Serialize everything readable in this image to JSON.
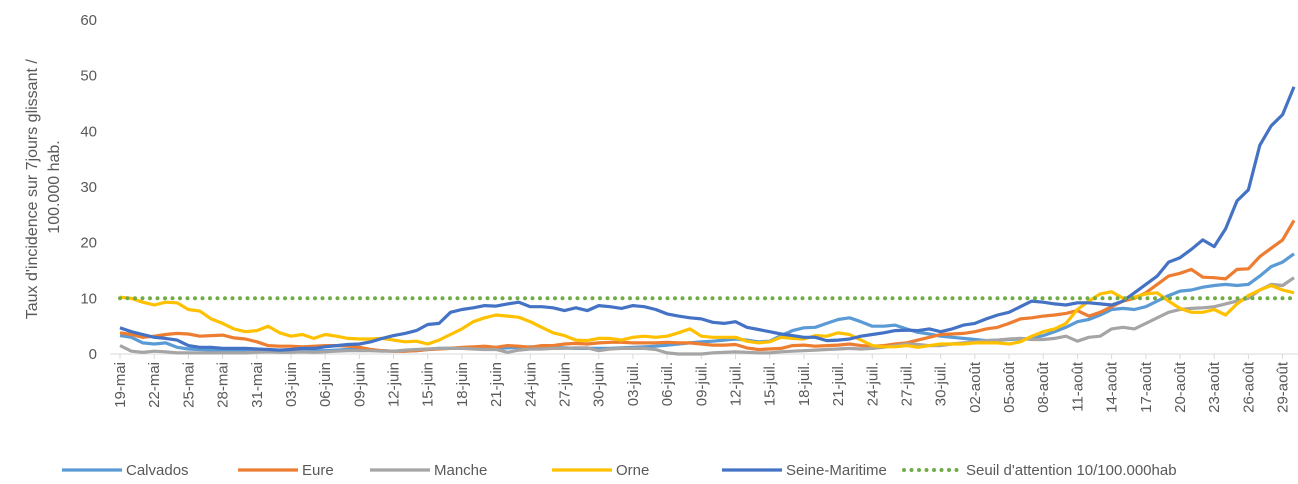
{
  "chart_data": {
    "type": "line",
    "ylabel": [
      "Taux d'incidence sur 7jours glissant /",
      "100.000 hab."
    ],
    "categories": [
      "19-mai",
      null,
      null,
      "22-mai",
      null,
      null,
      "25-mai",
      null,
      null,
      "28-mai",
      null,
      null,
      "31-mai",
      null,
      null,
      "03-juin",
      null,
      null,
      "06-juin",
      null,
      null,
      "09-juin",
      null,
      null,
      "12-juin",
      null,
      null,
      "15-juin",
      null,
      null,
      "18-juin",
      null,
      null,
      "21-juin",
      null,
      null,
      "24-juin",
      null,
      null,
      "27-juin",
      null,
      null,
      "30-juin",
      null,
      null,
      "03-juil.",
      null,
      null,
      "06-juil.",
      null,
      null,
      "09-juil.",
      null,
      null,
      "12-juil.",
      null,
      null,
      "15-juil.",
      null,
      null,
      "18-juil.",
      null,
      null,
      "21-juil.",
      null,
      null,
      "24-juil.",
      null,
      null,
      "27-juil.",
      null,
      null,
      "30-juil.",
      null,
      null,
      "02-août",
      null,
      null,
      "05-août",
      null,
      null,
      "08-août",
      null,
      null,
      "11-août",
      null,
      null,
      "14-août",
      null,
      null,
      "17-août",
      null,
      null,
      "20-août",
      null,
      null,
      "23-août",
      null,
      null,
      "26-août",
      null,
      null,
      "29-août",
      null
    ],
    "ylim": [
      0,
      60
    ],
    "yticks": [
      0,
      10,
      20,
      30,
      40,
      50,
      60
    ],
    "grid": false,
    "series": [
      {
        "name": "Calvados",
        "color": "#5b9bd5",
        "style": "solid",
        "values": [
          3.3,
          3,
          2,
          1.8,
          2,
          1.2,
          0.9,
          0.8,
          0.7,
          0.7,
          0.7,
          0.6,
          0.6,
          0.6,
          0.6,
          0.5,
          0.5,
          0.6,
          0.6,
          0.7,
          0.8,
          0.8,
          0.7,
          0.6,
          0.5,
          0.5,
          0.6,
          0.8,
          1,
          1,
          1.1,
          1,
          1,
          1,
          1.1,
          1.2,
          1.3,
          1.3,
          1.2,
          1.1,
          1,
          1,
          1,
          1,
          1.1,
          1.2,
          1.3,
          1.4,
          1.6,
          1.8,
          2,
          2.2,
          2.3,
          2.5,
          2.7,
          2.5,
          2.2,
          2.3,
          3.3,
          4.2,
          4.7,
          4.8,
          5.5,
          6.2,
          6.5,
          5.8,
          5,
          5,
          5.2,
          4.5,
          3.9,
          3.6,
          3.2,
          3,
          2.8,
          2.6,
          2.4,
          2.5,
          2.6,
          2.7,
          2.8,
          3.3,
          4,
          4.8,
          5.8,
          6.2,
          7,
          8,
          8.2,
          8,
          8.5,
          9.5,
          10.5,
          11.3,
          11.5,
          12,
          12.3,
          12.5,
          12.3,
          12.5,
          14,
          15.7,
          16.5,
          18
        ]
      },
      {
        "name": "Eure",
        "color": "#ed7d31",
        "style": "solid",
        "values": [
          3.8,
          3.5,
          3,
          3.2,
          3.5,
          3.7,
          3.6,
          3.2,
          3.3,
          3.4,
          2.9,
          2.7,
          2.2,
          1.5,
          1.4,
          1.4,
          1.3,
          1.4,
          1.5,
          1.5,
          1.4,
          1.2,
          0.8,
          0.6,
          0.5,
          0.5,
          0.6,
          0.8,
          0.9,
          1,
          1.2,
          1.3,
          1.4,
          1.2,
          1.5,
          1.4,
          1.2,
          1.5,
          1.5,
          1.8,
          1.9,
          1.8,
          2,
          2.1,
          2.1,
          2,
          2,
          2,
          2.1,
          2,
          2,
          1.8,
          1.6,
          1.6,
          1.7,
          1.1,
          0.8,
          0.9,
          1,
          1.5,
          1.6,
          1.4,
          1.5,
          1.6,
          1.8,
          1.5,
          1.4,
          1.5,
          1.8,
          2,
          2.5,
          3,
          3.5,
          3.6,
          3.7,
          4,
          4.5,
          4.8,
          5.5,
          6.3,
          6.5,
          6.8,
          7,
          7.3,
          7.8,
          6.8,
          7.5,
          8.5,
          9.5,
          10,
          11,
          12.5,
          14,
          14.5,
          15.2,
          13.8,
          13.7,
          13.5,
          15.2,
          15.3,
          17.5,
          19,
          20.5,
          24
        ]
      },
      {
        "name": "Manche",
        "color": "#a5a5a5",
        "style": "solid",
        "values": [
          1.5,
          0.5,
          0.3,
          0.5,
          0.4,
          0.2,
          0.2,
          0.2,
          0.2,
          0.2,
          0.2,
          0.2,
          0.3,
          0.4,
          0.3,
          0.3,
          0.4,
          0.3,
          0.4,
          0.5,
          0.6,
          0.6,
          0.6,
          0.5,
          0.5,
          0.7,
          0.8,
          0.9,
          1,
          1,
          1,
          0.9,
          0.8,
          0.8,
          0.3,
          0.7,
          0.9,
          0.9,
          1,
          1,
          1.1,
          1.1,
          0.6,
          0.9,
          1,
          1,
          1,
          0.8,
          0.2,
          0,
          0,
          0,
          0.2,
          0.3,
          0.4,
          0.3,
          0.2,
          0.2,
          0.4,
          0.5,
          0.6,
          0.7,
          0.8,
          0.9,
          1,
          0.9,
          1,
          1.2,
          1.5,
          1.8,
          1.7,
          1.5,
          1.5,
          1.8,
          2,
          2.2,
          2.4,
          2.5,
          2.7,
          2.8,
          2.6,
          2.6,
          2.8,
          3.2,
          2.3,
          3,
          3.2,
          4.5,
          4.8,
          4.5,
          5.5,
          6.5,
          7.5,
          8,
          8.2,
          8.3,
          8.5,
          9,
          9.5,
          10,
          11.5,
          12.5,
          12.3,
          13.7
        ]
      },
      {
        "name": "Orne",
        "color": "#ffc000",
        "style": "solid",
        "values": [
          10.2,
          10,
          9.3,
          8.8,
          9.3,
          9.2,
          8,
          7.7,
          6.3,
          5.5,
          4.5,
          4,
          4.2,
          5,
          3.8,
          3.2,
          3.5,
          2.8,
          3.5,
          3.2,
          2.8,
          2.7,
          2.7,
          2.8,
          2.5,
          2.2,
          2.3,
          1.8,
          2.5,
          3.5,
          4.5,
          5.8,
          6.5,
          7,
          6.8,
          6.6,
          5.8,
          4.8,
          3.8,
          3.3,
          2.5,
          2.4,
          2.8,
          2.8,
          2.5,
          3,
          3.2,
          3,
          3.2,
          3.8,
          4.5,
          3.2,
          3,
          3,
          3,
          2.3,
          2,
          2.2,
          3,
          2.8,
          2.7,
          3.3,
          3.2,
          3.8,
          3.5,
          2.5,
          1.5,
          1.3,
          1.3,
          1.5,
          1.2,
          1.5,
          1.8,
          1.8,
          1.8,
          2,
          2,
          2,
          1.8,
          2.2,
          3.2,
          4,
          4.5,
          5.5,
          8,
          9.5,
          10.8,
          11.2,
          10,
          10.2,
          10.8,
          11,
          9.5,
          8.2,
          7.5,
          7.5,
          8,
          7,
          9,
          10.5,
          11.5,
          12.3,
          11.5,
          11
        ]
      },
      {
        "name": "Seine-Maritime",
        "color": "#4472c4",
        "style": "solid",
        "values": [
          4.7,
          4,
          3.5,
          3,
          2.8,
          2.5,
          1.5,
          1.2,
          1.2,
          1,
          1,
          1,
          0.9,
          0.8,
          0.7,
          0.8,
          1,
          1,
          1.3,
          1.5,
          1.7,
          1.8,
          2.2,
          2.8,
          3.3,
          3.7,
          4.2,
          5.3,
          5.5,
          7.5,
          8,
          8.3,
          8.7,
          8.6,
          9,
          9.3,
          8.5,
          8.5,
          8.3,
          7.8,
          8.3,
          7.8,
          8.7,
          8.5,
          8.2,
          8.7,
          8.5,
          8,
          7.2,
          6.8,
          6.5,
          6.3,
          5.7,
          5.5,
          5.8,
          4.8,
          4.4,
          4,
          3.6,
          3.3,
          3,
          3,
          2.4,
          2.5,
          2.7,
          3.2,
          3.5,
          3.8,
          4.2,
          4.3,
          4.2,
          4.5,
          4,
          4.5,
          5.2,
          5.5,
          6.3,
          7,
          7.5,
          8.5,
          9.5,
          9.3,
          9,
          8.8,
          9.2,
          9.2,
          9,
          8.8,
          9.5,
          11,
          12.5,
          14,
          16.5,
          17.3,
          18.8,
          20.5,
          19.3,
          22.5,
          27.5,
          29.5,
          37.5,
          41,
          43,
          48
        ]
      },
      {
        "name": "Seuil d'attention 10/100.000hab",
        "color": "#70ad47",
        "style": "dotted",
        "values": [
          10,
          10,
          10,
          10,
          10,
          10,
          10,
          10,
          10,
          10,
          10,
          10,
          10,
          10,
          10,
          10,
          10,
          10,
          10,
          10,
          10,
          10,
          10,
          10,
          10,
          10,
          10,
          10,
          10,
          10,
          10,
          10,
          10,
          10,
          10,
          10,
          10,
          10,
          10,
          10,
          10,
          10,
          10,
          10,
          10,
          10,
          10,
          10,
          10,
          10,
          10,
          10,
          10,
          10,
          10,
          10,
          10,
          10,
          10,
          10,
          10,
          10,
          10,
          10,
          10,
          10,
          10,
          10,
          10,
          10,
          10,
          10,
          10,
          10,
          10,
          10,
          10,
          10,
          10,
          10,
          10,
          10,
          10,
          10,
          10,
          10,
          10,
          10,
          10,
          10,
          10,
          10,
          10,
          10,
          10,
          10,
          10,
          10,
          10,
          10,
          10,
          10,
          10,
          10
        ]
      }
    ]
  }
}
